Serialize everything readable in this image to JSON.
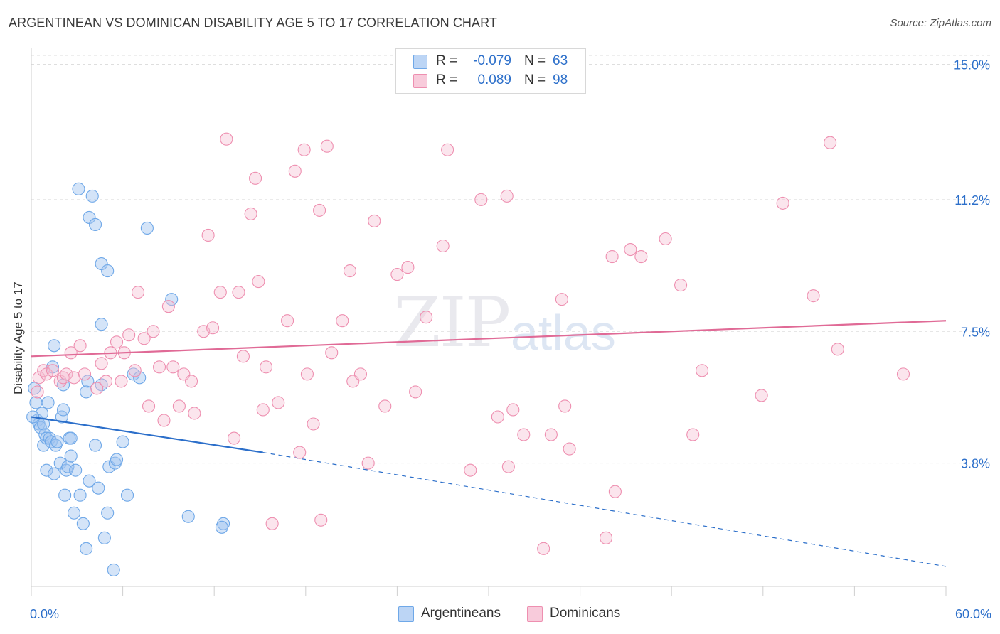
{
  "header": {
    "title": "ARGENTINEAN VS DOMINICAN DISABILITY AGE 5 TO 17 CORRELATION CHART",
    "source": "Source: ZipAtlas.com"
  },
  "watermark": {
    "zip": "ZIP",
    "atlas": "atlas"
  },
  "legend": {
    "rows": [
      {
        "r_label": "R =",
        "r_value": "-0.079",
        "n_label": "N =",
        "n_value": "63",
        "color": "#6fa8e8",
        "fill": "#bcd5f5"
      },
      {
        "r_label": "R =",
        "r_value": "0.089",
        "n_label": "N =",
        "n_value": "98",
        "color": "#ee8fb0",
        "fill": "#f8cbdb"
      }
    ],
    "bottom": [
      {
        "label": "Argentineans"
      },
      {
        "label": "Dominicans"
      }
    ]
  },
  "chart_data": {
    "type": "scatter",
    "title": "ARGENTINEAN VS DOMINICAN DISABILITY AGE 5 TO 17 CORRELATION CHART",
    "xlabel": "",
    "ylabel": "Disability Age 5 to 17",
    "xlim": [
      0,
      60
    ],
    "ylim": [
      0,
      15.5
    ],
    "x_tick_labels": [
      "0.0%",
      "60.0%"
    ],
    "y_ticks": [
      3.8,
      7.5,
      11.2,
      15.0
    ],
    "y_tick_labels": [
      "3.8%",
      "7.5%",
      "11.2%",
      "15.0%"
    ],
    "grid": "horizontal dashed",
    "legend_position": "top-center and bottom",
    "colors": {
      "argentineans": "#6fa8e8",
      "dominicans": "#ee8fb0",
      "arg_trend": "#2c6fca",
      "dom_trend": "#e06a96"
    },
    "series": [
      {
        "name": "Argentineans",
        "trend": {
          "x0": 0,
          "y0": 5.1,
          "x1": 15.2,
          "y1": 4.1,
          "dash_to_x": 60,
          "dash_to_y": 0.9
        },
        "points": [
          [
            0.2,
            5.9
          ],
          [
            0.3,
            5.5
          ],
          [
            0.4,
            5.0
          ],
          [
            0.5,
            4.9
          ],
          [
            0.6,
            4.8
          ],
          [
            0.7,
            5.2
          ],
          [
            0.8,
            4.9
          ],
          [
            0.8,
            4.3
          ],
          [
            0.9,
            4.6
          ],
          [
            1.0,
            4.5
          ],
          [
            1.0,
            3.6
          ],
          [
            1.1,
            5.5
          ],
          [
            1.2,
            4.5
          ],
          [
            1.3,
            4.4
          ],
          [
            1.4,
            6.5
          ],
          [
            1.5,
            7.1
          ],
          [
            1.5,
            3.5
          ],
          [
            1.6,
            4.3
          ],
          [
            1.7,
            4.4
          ],
          [
            1.9,
            3.8
          ],
          [
            2.0,
            5.1
          ],
          [
            2.1,
            5.3
          ],
          [
            2.2,
            2.9
          ],
          [
            2.3,
            3.6
          ],
          [
            2.4,
            3.7
          ],
          [
            2.5,
            4.5
          ],
          [
            2.6,
            4.0
          ],
          [
            2.8,
            2.4
          ],
          [
            2.9,
            3.6
          ],
          [
            3.2,
            2.9
          ],
          [
            3.4,
            2.1
          ],
          [
            3.6,
            1.4
          ],
          [
            3.8,
            3.3
          ],
          [
            4.2,
            4.3
          ],
          [
            4.4,
            3.1
          ],
          [
            4.6,
            7.7
          ],
          [
            4.8,
            1.7
          ],
          [
            5.0,
            2.4
          ],
          [
            5.1,
            3.7
          ],
          [
            5.4,
            0.8
          ],
          [
            5.5,
            3.8
          ],
          [
            5.6,
            3.9
          ],
          [
            6.3,
            2.9
          ],
          [
            6.7,
            6.3
          ],
          [
            7.1,
            6.2
          ],
          [
            3.1,
            11.5
          ],
          [
            4.0,
            11.3
          ],
          [
            3.8,
            10.7
          ],
          [
            4.2,
            10.5
          ],
          [
            4.6,
            9.4
          ],
          [
            5.0,
            9.2
          ],
          [
            7.6,
            10.4
          ],
          [
            9.2,
            8.4
          ],
          [
            10.3,
            2.3
          ],
          [
            12.6,
            2.1
          ],
          [
            12.5,
            2.0
          ],
          [
            3.7,
            6.1
          ],
          [
            3.6,
            5.8
          ],
          [
            2.1,
            6.0
          ],
          [
            0.1,
            5.1
          ],
          [
            6.0,
            4.4
          ],
          [
            2.6,
            4.5
          ],
          [
            4.6,
            6.0
          ]
        ]
      },
      {
        "name": "Dominicans",
        "trend": {
          "x0": 0,
          "y0": 6.8,
          "x1": 60,
          "y1": 7.8
        },
        "points": [
          [
            0.4,
            5.8
          ],
          [
            0.5,
            6.2
          ],
          [
            0.8,
            6.4
          ],
          [
            1.0,
            6.3
          ],
          [
            1.4,
            6.4
          ],
          [
            1.9,
            6.1
          ],
          [
            2.1,
            6.2
          ],
          [
            2.3,
            6.3
          ],
          [
            2.6,
            6.9
          ],
          [
            2.8,
            6.2
          ],
          [
            3.2,
            7.1
          ],
          [
            3.5,
            6.3
          ],
          [
            4.3,
            5.9
          ],
          [
            4.6,
            6.6
          ],
          [
            4.9,
            6.1
          ],
          [
            5.2,
            6.9
          ],
          [
            5.6,
            7.2
          ],
          [
            5.9,
            6.1
          ],
          [
            6.1,
            6.9
          ],
          [
            6.4,
            7.4
          ],
          [
            6.8,
            6.4
          ],
          [
            7.0,
            8.6
          ],
          [
            7.4,
            7.3
          ],
          [
            7.7,
            5.4
          ],
          [
            8.0,
            7.5
          ],
          [
            8.4,
            6.5
          ],
          [
            8.7,
            5.0
          ],
          [
            9.0,
            8.2
          ],
          [
            9.3,
            6.5
          ],
          [
            9.7,
            5.4
          ],
          [
            10.0,
            6.3
          ],
          [
            10.5,
            6.1
          ],
          [
            10.7,
            5.2
          ],
          [
            11.3,
            7.5
          ],
          [
            11.6,
            10.2
          ],
          [
            11.9,
            7.6
          ],
          [
            12.4,
            8.6
          ],
          [
            12.8,
            12.9
          ],
          [
            13.3,
            4.5
          ],
          [
            13.6,
            8.6
          ],
          [
            13.9,
            6.8
          ],
          [
            14.4,
            10.8
          ],
          [
            14.7,
            11.8
          ],
          [
            14.9,
            8.9
          ],
          [
            15.2,
            5.3
          ],
          [
            15.4,
            6.5
          ],
          [
            15.8,
            2.1
          ],
          [
            16.2,
            5.5
          ],
          [
            16.8,
            7.8
          ],
          [
            17.3,
            12.0
          ],
          [
            17.6,
            4.1
          ],
          [
            17.9,
            12.6
          ],
          [
            18.1,
            6.3
          ],
          [
            18.5,
            4.9
          ],
          [
            18.9,
            10.9
          ],
          [
            19.0,
            2.2
          ],
          [
            19.4,
            12.7
          ],
          [
            19.7,
            6.9
          ],
          [
            20.4,
            7.8
          ],
          [
            20.9,
            9.2
          ],
          [
            21.1,
            6.1
          ],
          [
            21.6,
            6.3
          ],
          [
            22.1,
            3.8
          ],
          [
            22.5,
            10.6
          ],
          [
            23.2,
            5.4
          ],
          [
            24.0,
            9.1
          ],
          [
            24.7,
            9.3
          ],
          [
            25.2,
            5.8
          ],
          [
            25.9,
            7.9
          ],
          [
            27.0,
            9.9
          ],
          [
            27.3,
            12.6
          ],
          [
            28.8,
            3.6
          ],
          [
            29.5,
            11.2
          ],
          [
            30.6,
            5.1
          ],
          [
            31.2,
            11.3
          ],
          [
            31.3,
            3.7
          ],
          [
            31.6,
            5.3
          ],
          [
            32.3,
            4.6
          ],
          [
            33.6,
            1.4
          ],
          [
            34.1,
            4.6
          ],
          [
            34.8,
            8.4
          ],
          [
            35.0,
            5.4
          ],
          [
            35.3,
            4.2
          ],
          [
            37.7,
            1.7
          ],
          [
            38.1,
            9.6
          ],
          [
            38.3,
            3.0
          ],
          [
            39.3,
            9.8
          ],
          [
            40.0,
            9.6
          ],
          [
            41.6,
            10.1
          ],
          [
            42.6,
            8.8
          ],
          [
            43.4,
            4.6
          ],
          [
            44.0,
            6.4
          ],
          [
            47.9,
            5.7
          ],
          [
            49.3,
            11.1
          ],
          [
            51.3,
            8.5
          ],
          [
            52.4,
            12.8
          ],
          [
            52.9,
            7.0
          ],
          [
            57.2,
            6.3
          ]
        ]
      }
    ]
  }
}
